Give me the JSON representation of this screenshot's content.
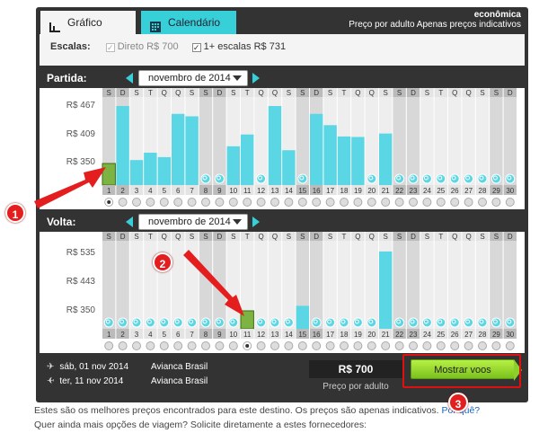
{
  "tabs": {
    "grafico": "Gráfico",
    "calendario": "Calendário"
  },
  "header_right": {
    "line1": "econômica",
    "line2": "Preço por adulto Apenas preços indicativos"
  },
  "escalas": {
    "label": "Escalas:",
    "options": [
      {
        "label": "Direto R$ 700",
        "checked": true,
        "disabled": true
      },
      {
        "label": "1+ escalas R$ 731",
        "checked": true,
        "disabled": false
      }
    ]
  },
  "partida": {
    "label": "Partida:",
    "month": "novembro de 2014",
    "yticks": [
      "R$ 467",
      "R$ 409",
      "R$ 350"
    ],
    "weekdays": [
      "S",
      "D",
      "S",
      "T",
      "Q",
      "Q",
      "S",
      "S",
      "D",
      "S",
      "T",
      "Q",
      "Q",
      "S",
      "S",
      "D",
      "S",
      "T",
      "Q",
      "Q",
      "S",
      "S",
      "D",
      "S",
      "T",
      "Q",
      "Q",
      "S",
      "S",
      "D"
    ],
    "days": [
      "1",
      "2",
      "3",
      "4",
      "5",
      "6",
      "7",
      "8",
      "9",
      "10",
      "11",
      "12",
      "13",
      "14",
      "15",
      "16",
      "17",
      "18",
      "19",
      "20",
      "21",
      "22",
      "23",
      "24",
      "25",
      "26",
      "27",
      "28",
      "29",
      "30"
    ],
    "bars": [
      350,
      467,
      357,
      372,
      363,
      451,
      446,
      null,
      null,
      385,
      409,
      null,
      467,
      377,
      null,
      451,
      428,
      405,
      404,
      null,
      411,
      null,
      null,
      null,
      null,
      null,
      null,
      null,
      null,
      null
    ],
    "selected_index": 0
  },
  "volta": {
    "label": "Volta:",
    "month": "novembro de 2014",
    "yticks": [
      "R$ 535",
      "R$ 443",
      "R$ 350"
    ],
    "weekdays": [
      "S",
      "D",
      "S",
      "T",
      "Q",
      "Q",
      "S",
      "S",
      "D",
      "S",
      "T",
      "Q",
      "Q",
      "S",
      "S",
      "D",
      "S",
      "T",
      "Q",
      "Q",
      "S",
      "S",
      "D",
      "S",
      "T",
      "Q",
      "Q",
      "S",
      "S",
      "D"
    ],
    "days": [
      "1",
      "2",
      "3",
      "4",
      "5",
      "6",
      "7",
      "8",
      "9",
      "10",
      "11",
      "12",
      "13",
      "14",
      "15",
      "16",
      "17",
      "18",
      "19",
      "20",
      "21",
      "22",
      "23",
      "24",
      "25",
      "26",
      "27",
      "28",
      "29",
      "30"
    ],
    "bars": [
      null,
      null,
      null,
      null,
      null,
      null,
      null,
      null,
      null,
      null,
      350,
      null,
      null,
      null,
      366,
      null,
      null,
      null,
      null,
      null,
      541,
      null,
      null,
      null,
      null,
      null,
      null,
      null,
      null,
      null
    ],
    "selected_index": 10
  },
  "summary": {
    "outbound": {
      "date": "sáb, 01 nov 2014",
      "airline": "Avianca Brasil"
    },
    "return": {
      "date": "ter, 11 nov 2014",
      "airline": "Avianca Brasil"
    },
    "price": "R$ 700",
    "price_label": "Preço por adulto",
    "button": "Mostrar voos"
  },
  "footer": {
    "line1": "Estes são os melhores preços encontrados para este destino. Os preços são apenas indicativos.",
    "link": "Por quê?",
    "line2": "Quer ainda mais opções de viagem? Solicite diretamente a estes fornecedores:"
  },
  "annotations": [
    "1",
    "2",
    "3"
  ],
  "colors": {
    "bar": "#5ad6e4",
    "selected_bar": "#7cb342",
    "accent": "#38d0d8",
    "annotation": "#e41e1e"
  }
}
